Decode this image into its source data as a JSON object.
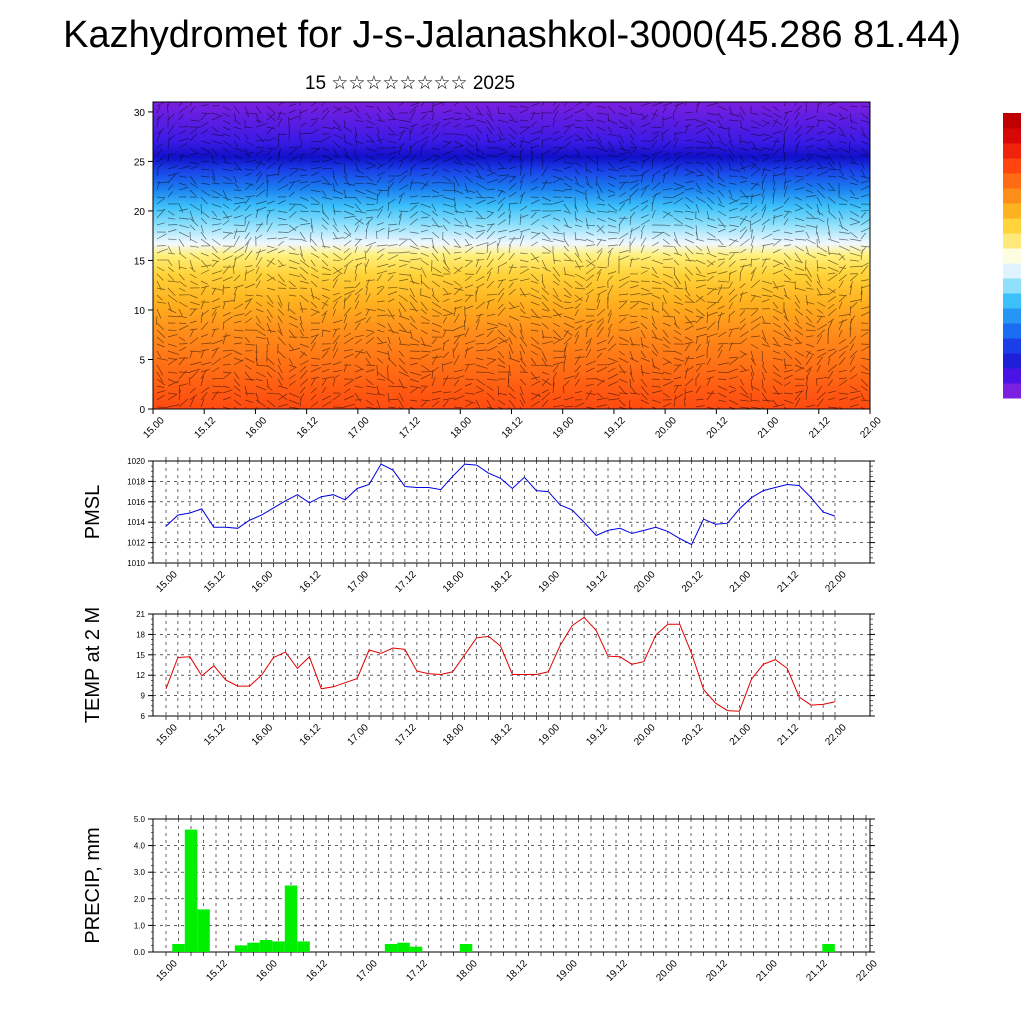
{
  "title": "Kazhydromet for J-s-Jalanashkol-3000(45.286 81.44)",
  "subtitle": "15 ☆☆☆☆☆☆☆☆ 2025",
  "time_ticks": [
    "15.00",
    "15.12",
    "16.00",
    "16.12",
    "17.00",
    "17.12",
    "18.00",
    "18.12",
    "19.00",
    "19.12",
    "20.00",
    "20.12",
    "21.00",
    "21.12",
    "22.00"
  ],
  "colorbar_colors": [
    "#7b1fe0",
    "#4a12e6",
    "#1f1fd8",
    "#1a3fe8",
    "#1a6cf0",
    "#2596f5",
    "#3cc0fa",
    "#8fe0fb",
    "#e0f4ff",
    "#fffde0",
    "#ffe97a",
    "#ffd33a",
    "#ffb21f",
    "#ff8d1a",
    "#ff6a14",
    "#ff4410",
    "#f0220c",
    "#d90808",
    "#c00000"
  ],
  "chart_data": [
    {
      "type": "heatmap",
      "name": "cross-section",
      "y_ticks": [
        0,
        5,
        10,
        15,
        20,
        25,
        30
      ],
      "ylim": [
        0,
        31
      ],
      "xlim": [
        15.0,
        22.0
      ],
      "note_colors": "bands by height: purple above 26, dark blue ~25, blue/cyan 17-23, yellow 13-16, orange 0-12, red near surface at 19.12-20.00"
    },
    {
      "type": "line",
      "ylabel": "PMSL",
      "ylim": [
        1010,
        1020
      ],
      "y_ticks": [
        1010,
        1012,
        1014,
        1016,
        1018,
        1020
      ],
      "color": "#0000e0",
      "x": [
        15.0,
        15.125,
        15.25,
        15.375,
        15.5,
        15.625,
        15.75,
        15.875,
        16.0,
        16.125,
        16.25,
        16.375,
        16.5,
        16.625,
        16.75,
        16.875,
        17.0,
        17.125,
        17.25,
        17.375,
        17.5,
        17.625,
        17.75,
        17.875,
        18.0,
        18.125,
        18.25,
        18.375,
        18.5,
        18.625,
        18.75,
        18.875,
        19.0,
        19.125,
        19.25,
        19.375,
        19.5,
        19.625,
        19.75,
        19.875,
        20.0,
        20.125,
        20.25,
        20.375,
        20.5,
        20.625,
        20.75,
        20.875,
        21.0,
        21.125,
        21.25,
        21.375,
        21.5,
        21.625,
        21.75,
        21.875,
        22.0
      ],
      "values": [
        1013.6,
        1014.7,
        1014.9,
        1015.3,
        1013.5,
        1013.5,
        1013.4,
        1014.2,
        1014.7,
        1015.4,
        1016.1,
        1016.7,
        1015.9,
        1016.5,
        1016.7,
        1016.2,
        1017.3,
        1017.7,
        1019.7,
        1019.1,
        1017.5,
        1017.4,
        1017.4,
        1017.2,
        1018.5,
        1019.7,
        1019.6,
        1018.8,
        1018.3,
        1017.3,
        1018.4,
        1017.1,
        1017.0,
        1015.7,
        1015.2,
        1014.0,
        1012.7,
        1013.2,
        1013.4,
        1012.9,
        1013.2,
        1013.5,
        1013.1,
        1012.4,
        1011.8,
        1014.3,
        1013.8,
        1013.9,
        1015.3,
        1016.4,
        1017.1,
        1017.4,
        1017.7,
        1017.6,
        1016.4,
        1015.0,
        1014.6
      ]
    },
    {
      "type": "line",
      "ylabel": "TEMP at 2 M",
      "ylim": [
        6,
        21
      ],
      "y_ticks": [
        6,
        9,
        12,
        15,
        18,
        21
      ],
      "color": "#e00000",
      "x": [
        15.0,
        15.125,
        15.25,
        15.375,
        15.5,
        15.625,
        15.75,
        15.875,
        16.0,
        16.125,
        16.25,
        16.375,
        16.5,
        16.625,
        16.75,
        16.875,
        17.0,
        17.125,
        17.25,
        17.375,
        17.5,
        17.625,
        17.75,
        17.875,
        18.0,
        18.125,
        18.25,
        18.375,
        18.5,
        18.625,
        18.75,
        18.875,
        19.0,
        19.125,
        19.25,
        19.375,
        19.5,
        19.625,
        19.75,
        19.875,
        20.0,
        20.125,
        20.25,
        20.375,
        20.5,
        20.625,
        20.75,
        20.875,
        21.0,
        21.125,
        21.25,
        21.375,
        21.5,
        21.625,
        21.75,
        21.875,
        22.0
      ],
      "values": [
        10.0,
        14.6,
        14.7,
        11.9,
        13.4,
        11.3,
        10.4,
        10.4,
        12.0,
        14.6,
        15.4,
        13.0,
        14.7,
        10.0,
        10.3,
        10.9,
        11.5,
        15.7,
        15.2,
        16.0,
        15.8,
        12.6,
        12.2,
        12.1,
        12.5,
        15.0,
        17.5,
        17.7,
        16.3,
        12.1,
        12.1,
        12.1,
        12.5,
        16.4,
        19.3,
        20.5,
        18.6,
        14.8,
        14.7,
        13.6,
        14.0,
        17.9,
        19.5,
        19.5,
        15.2,
        9.9,
        7.9,
        6.8,
        6.7,
        11.4,
        13.6,
        14.3,
        13.0,
        8.8,
        7.6,
        7.7,
        8.1
      ]
    },
    {
      "type": "bar",
      "ylabel": "PRECIP, mm",
      "ylim": [
        0,
        5
      ],
      "y_ticks": [
        "0.0",
        "1.0",
        "2.0",
        "3.0",
        "4.0",
        "5.0"
      ],
      "color": "#00ee00",
      "x": [
        15.0,
        15.125,
        15.25,
        15.375,
        15.5,
        15.625,
        15.75,
        15.875,
        16.0,
        16.125,
        16.25,
        16.375,
        16.5,
        16.625,
        16.75,
        16.875,
        17.0,
        17.125,
        17.25,
        17.375,
        17.5,
        17.625,
        17.75,
        17.875,
        18.0,
        18.125,
        18.25,
        18.375,
        18.5,
        18.625,
        18.75,
        18.875,
        19.0,
        19.125,
        19.25,
        19.375,
        19.5,
        19.625,
        19.75,
        19.875,
        20.0,
        20.125,
        20.25,
        20.375,
        20.5,
        20.625,
        20.75,
        20.875,
        21.0,
        21.125,
        21.25,
        21.375,
        21.5,
        21.625,
        21.75,
        21.875,
        22.0
      ],
      "values": [
        0,
        0.3,
        4.6,
        1.6,
        0,
        0,
        0.25,
        0.35,
        0.45,
        0.4,
        2.5,
        0.4,
        0,
        0,
        0,
        0,
        0,
        0,
        0.3,
        0.35,
        0.2,
        0,
        0,
        0,
        0.3,
        0,
        0,
        0,
        0,
        0,
        0,
        0,
        0,
        0,
        0,
        0,
        0,
        0,
        0,
        0,
        0,
        0,
        0,
        0,
        0,
        0,
        0,
        0,
        0,
        0,
        0,
        0,
        0,
        0.3,
        0,
        0,
        0
      ]
    }
  ]
}
